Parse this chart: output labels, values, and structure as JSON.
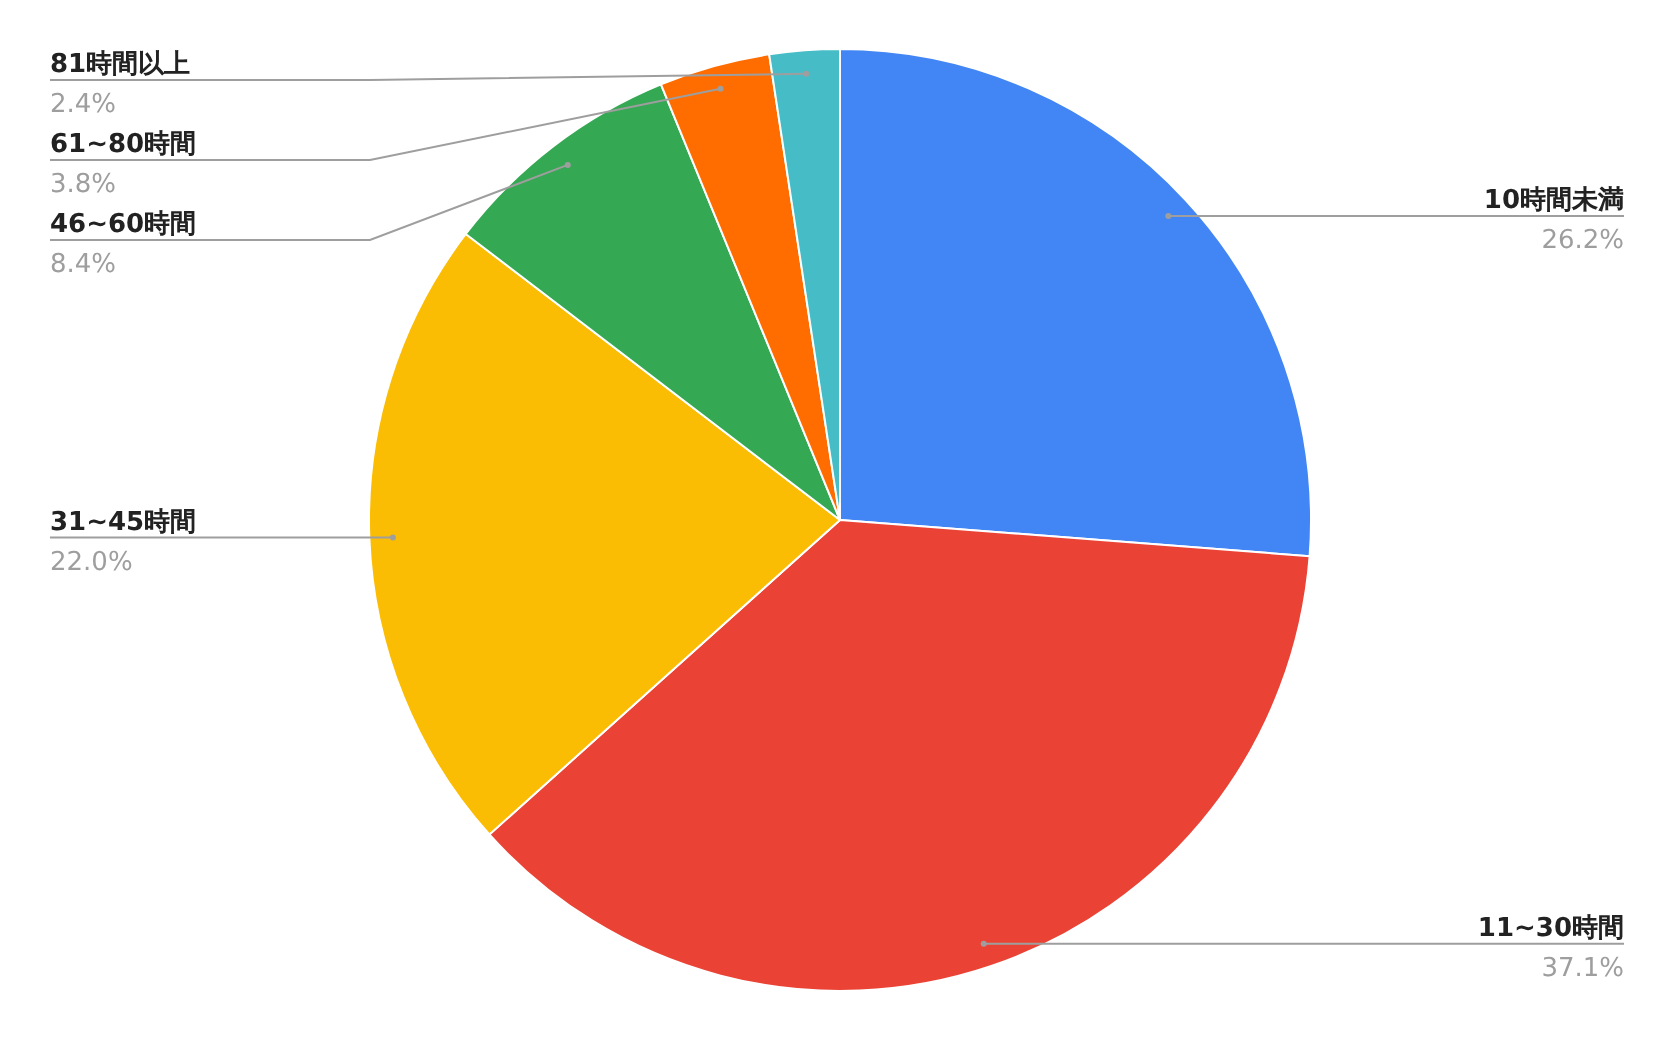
{
  "chart_data": {
    "type": "pie",
    "categories": [
      "10時間未満",
      "11~30時間",
      "31~45時間",
      "46~60時間",
      "61~80時間",
      "81時間以上"
    ],
    "values": [
      26.2,
      37.1,
      22.0,
      8.4,
      3.8,
      2.4
    ],
    "colors": [
      "#4285f4",
      "#ea4335",
      "#fbbc04",
      "#34a853",
      "#ff6d01",
      "#46bdc6"
    ],
    "value_labels": [
      "26.2%",
      "37.1%",
      "22.0%",
      "8.4%",
      "3.8%",
      "2.4%"
    ],
    "legend": false
  }
}
